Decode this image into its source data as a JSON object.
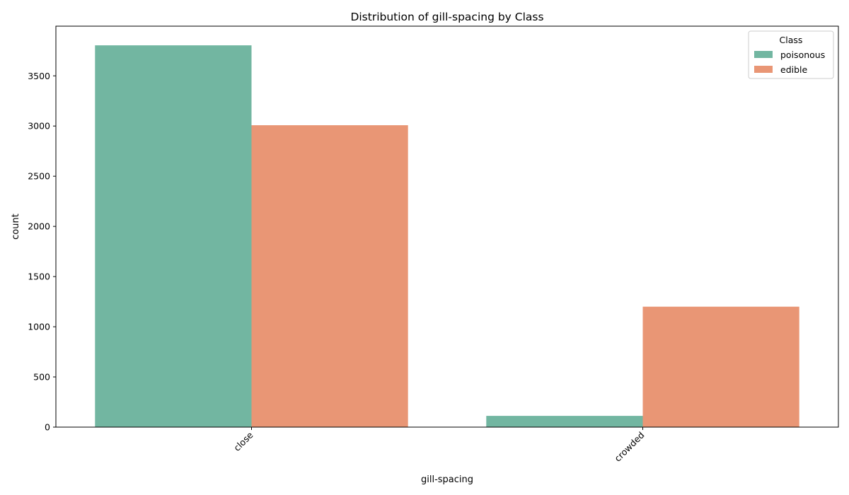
{
  "chart_data": {
    "type": "bar",
    "title": "Distribution of gill-spacing by Class",
    "xlabel": "gill-spacing",
    "ylabel": "count",
    "categories": [
      "close",
      "crowded"
    ],
    "series": [
      {
        "name": "poisonous",
        "color": "#72b6a1",
        "values": [
          3804,
          112
        ]
      },
      {
        "name": "edible",
        "color": "#e99675",
        "values": [
          3008,
          1200
        ]
      }
    ],
    "ylim": [
      0,
      3995
    ],
    "yticks": [
      0,
      500,
      1000,
      1500,
      2000,
      2500,
      3000,
      3500
    ],
    "grid": false,
    "legend": {
      "title": "Class",
      "placement": "top-right"
    }
  }
}
